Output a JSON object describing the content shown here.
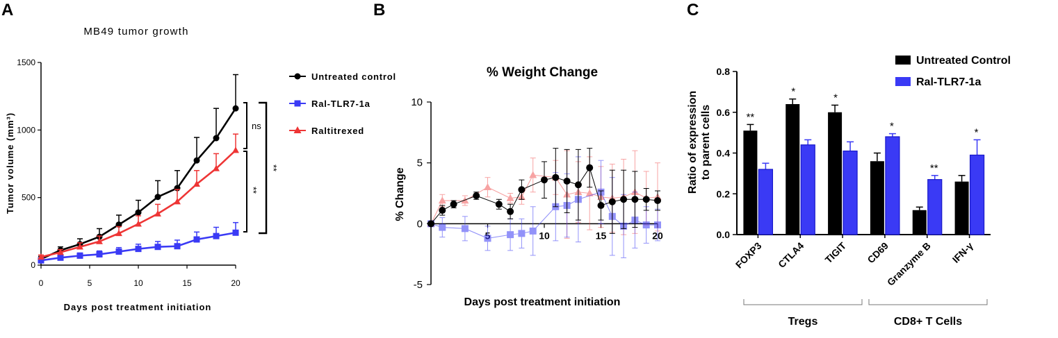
{
  "panels": {
    "a": "A",
    "b": "B",
    "c": "C"
  },
  "colors": {
    "black": "#000000",
    "blue": "#3a3af5",
    "red": "#ee3535"
  },
  "chart_data": [
    {
      "type": "line",
      "title": "MB49 tumor growth",
      "xlabel": "Days post treatment initiation",
      "ylabel": "Tumor volume (mm³)",
      "xlim": [
        0,
        20
      ],
      "ylim": [
        0,
        1500
      ],
      "xticks": [
        0,
        5,
        10,
        15,
        20
      ],
      "yticks": [
        0,
        500,
        1000,
        1500
      ],
      "x": [
        0,
        2,
        4,
        6,
        8,
        10,
        12,
        14,
        16,
        18,
        20
      ],
      "series": [
        {
          "name": "Untreated control",
          "marker": "circle",
          "color": "#000000",
          "values": [
            45,
            110,
            155,
            210,
            300,
            390,
            505,
            570,
            775,
            940,
            1160
          ],
          "errors": [
            20,
            25,
            40,
            60,
            70,
            90,
            120,
            130,
            170,
            220,
            250
          ]
        },
        {
          "name": "Ral-TLR7-1a",
          "marker": "square",
          "color": "#3a3af5",
          "values": [
            35,
            55,
            70,
            80,
            100,
            120,
            135,
            140,
            190,
            215,
            240
          ],
          "errors": [
            10,
            15,
            20,
            25,
            30,
            35,
            40,
            45,
            55,
            65,
            75
          ]
        },
        {
          "name": "Raltitrexed",
          "marker": "triangle",
          "color": "#ee3535",
          "values": [
            60,
            95,
            135,
            175,
            235,
            305,
            380,
            470,
            600,
            715,
            850
          ],
          "errors": [
            15,
            20,
            30,
            40,
            50,
            60,
            70,
            90,
            100,
            110,
            120
          ]
        }
      ],
      "significance": [
        {
          "label": "ns",
          "between": [
            "Untreated control",
            "Raltitrexed"
          ]
        },
        {
          "label": "**",
          "between": [
            "Raltitrexed",
            "Ral-TLR7-1a"
          ]
        },
        {
          "label": "**",
          "between": [
            "Untreated control",
            "Ral-TLR7-1a"
          ]
        }
      ]
    },
    {
      "type": "line",
      "title": "% Weight Change",
      "xlabel": "Days post treatment initiation",
      "ylabel": "% Change",
      "xlim": [
        0,
        20
      ],
      "ylim": [
        -5,
        10
      ],
      "xticks": [
        5,
        10,
        15,
        20
      ],
      "yticks": [
        -5,
        0,
        5,
        10
      ],
      "series": [
        {
          "name": "Untreated control",
          "marker": "circle",
          "color": "#000000",
          "x": [
            0,
            1,
            2,
            4,
            6,
            7,
            8,
            10,
            11,
            12,
            13,
            14,
            15,
            16,
            17,
            18,
            19,
            20
          ],
          "values": [
            0,
            1.1,
            1.6,
            2.3,
            1.6,
            1.0,
            2.8,
            3.6,
            3.8,
            3.5,
            3.2,
            4.6,
            1.5,
            1.8,
            2.0,
            2.0,
            2.0,
            1.9
          ],
          "errors": [
            0,
            0.4,
            0.3,
            0.3,
            0.4,
            0.6,
            0.8,
            1.5,
            2.4,
            2.6,
            2.9,
            1.6,
            1.2,
            2.6,
            2.4,
            2.3,
            0.9,
            0.8
          ]
        },
        {
          "name": "Ral-TLR7-1a",
          "marker": "square",
          "color": "#3a3af5",
          "x": [
            0,
            1,
            3,
            5,
            7,
            8,
            9,
            11,
            12,
            13,
            15,
            16,
            17,
            18,
            19,
            20
          ],
          "values": [
            0,
            -0.3,
            -0.4,
            -1.2,
            -0.9,
            -0.8,
            -0.6,
            1.4,
            1.5,
            2.0,
            2.6,
            0.6,
            -0.2,
            0.3,
            -0.1,
            -0.1
          ],
          "errors": [
            0,
            0.8,
            1.0,
            1.0,
            1.3,
            1.2,
            2.0,
            2.8,
            2.6,
            3.5,
            2.6,
            3.2,
            2.6,
            2.3,
            1.5,
            1.3
          ]
        },
        {
          "name": "Raltitrexed",
          "marker": "triangle",
          "color": "#ee3535",
          "x": [
            0,
            1,
            3,
            5,
            7,
            8,
            9,
            11,
            12,
            13,
            14,
            15,
            16,
            17,
            18,
            19,
            20
          ],
          "values": [
            0,
            1.9,
            1.9,
            3.0,
            2.1,
            2.2,
            4.0,
            3.8,
            2.4,
            2.6,
            2.5,
            2.2,
            2.1,
            2.2,
            2.6,
            2.1,
            2.2
          ],
          "errors": [
            0,
            0.5,
            0.4,
            0.8,
            0.4,
            0.6,
            1.4,
            1.4,
            3.6,
            2.5,
            3.0,
            2.5,
            2.8,
            3.1,
            3.4,
            2.2,
            2.8
          ]
        }
      ]
    },
    {
      "type": "bar",
      "xlabel": "",
      "ylabel": "Ratio of expression to parent cells",
      "ylabel_lines": [
        "Ratio of expression",
        "to parent cells"
      ],
      "ylim": [
        0,
        0.8
      ],
      "yticks": [
        "0.0",
        "0.2",
        "0.4",
        "0.6",
        "0.8"
      ],
      "categories": [
        "FOXP3",
        "CTLA4",
        "TIGIT",
        "CD69",
        "Granzyme B",
        "IFN-γ"
      ],
      "series": [
        {
          "name": "Untreated Control",
          "color": "#000000",
          "values": [
            0.51,
            0.64,
            0.6,
            0.36,
            0.12,
            0.26
          ],
          "errors": [
            0.03,
            0.025,
            0.035,
            0.04,
            0.015,
            0.03
          ]
        },
        {
          "name": "Ral-TLR7-1a",
          "color": "#3a3af5",
          "values": [
            0.32,
            0.44,
            0.41,
            0.48,
            0.27,
            0.39
          ],
          "errors": [
            0.03,
            0.025,
            0.045,
            0.015,
            0.02,
            0.075
          ]
        }
      ],
      "significance": [
        "**",
        "*",
        "*",
        "*",
        "**",
        "*"
      ],
      "groups": [
        {
          "label": "Tregs",
          "categories": [
            "FOXP3",
            "CTLA4",
            "TIGIT"
          ]
        },
        {
          "label": "CD8+ T Cells",
          "categories": [
            "CD69",
            "Granzyme B",
            "IFN-γ"
          ]
        }
      ]
    }
  ]
}
